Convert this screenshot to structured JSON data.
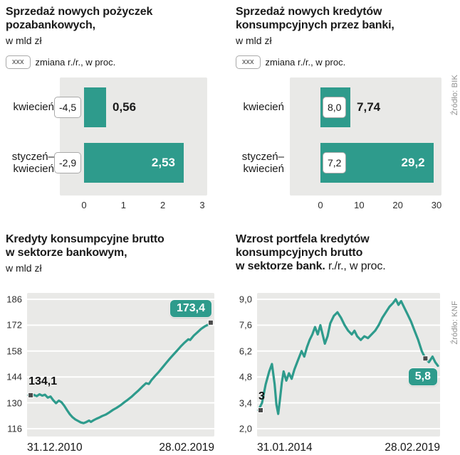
{
  "colors": {
    "teal": "#2E9B8C",
    "panel_bg": "#E9E9E7",
    "badge_border": "#A9A9A9",
    "marker": "#4A4A4A",
    "source_text": "#8F8F8F"
  },
  "sources": [
    {
      "label": "Źródło: BIK"
    },
    {
      "label": "Źródło: KNF"
    }
  ],
  "chart_data": [
    {
      "type": "bar",
      "title": "Sprzedaż nowych pożyczek\npozabankowych,",
      "subtitle": "w mld zł",
      "legend_badge": "xxx",
      "legend_label": "zmiana r./r., w proc.",
      "categories": [
        "kwiecień",
        "styczeń–\nkwiecień"
      ],
      "values": [
        0.56,
        2.53
      ],
      "value_labels": [
        "0,56",
        "2,53"
      ],
      "change_yoy_percent_labels": [
        "-4,5",
        "-2,9"
      ],
      "xlim": [
        0,
        3
      ],
      "xticks": [
        0,
        1,
        2,
        3
      ]
    },
    {
      "type": "bar",
      "title": "Sprzedaż nowych kredytów\nkonsumpcyjnych przez banki,",
      "subtitle": "w mld zł",
      "legend_badge": "xxx",
      "legend_label": "zmiana r./r., w proc.",
      "categories": [
        "kwiecień",
        "styczeń–\nkwiecień"
      ],
      "values": [
        7.74,
        29.2
      ],
      "value_labels": [
        "7,74",
        "29,2"
      ],
      "change_yoy_percent_labels": [
        "8,0",
        "7,2"
      ],
      "xlim": [
        0,
        30
      ],
      "xticks": [
        0,
        10,
        20,
        30
      ]
    },
    {
      "type": "line",
      "title": "Kredyty konsumpcyjne brutto\nw sektorze bankowym,",
      "subtitle": "w mld zł",
      "x_axis_labels": [
        "31.12.2010",
        "28.02.2019"
      ],
      "ylim": [
        116,
        186
      ],
      "yticks": [
        186,
        172,
        158,
        144,
        130,
        116
      ],
      "ytick_labels": [
        "186",
        "172",
        "158",
        "144",
        "130",
        "116"
      ],
      "start_marker": {
        "x": 0.012,
        "y": 134.1,
        "label": "134,1"
      },
      "end_marker": {
        "x": 0.992,
        "y": 173.4,
        "label": "173,4"
      },
      "points": [
        [
          0.0,
          134.1
        ],
        [
          0.015,
          133.2
        ],
        [
          0.03,
          134.3
        ],
        [
          0.045,
          133.6
        ],
        [
          0.06,
          134.6
        ],
        [
          0.075,
          133.9
        ],
        [
          0.09,
          134.4
        ],
        [
          0.105,
          132.8
        ],
        [
          0.12,
          133.4
        ],
        [
          0.135,
          131.4
        ],
        [
          0.15,
          129.8
        ],
        [
          0.165,
          131.2
        ],
        [
          0.18,
          130.3
        ],
        [
          0.195,
          128.4
        ],
        [
          0.21,
          126.0
        ],
        [
          0.225,
          123.8
        ],
        [
          0.24,
          122.2
        ],
        [
          0.255,
          121.0
        ],
        [
          0.27,
          120.2
        ],
        [
          0.285,
          119.4
        ],
        [
          0.3,
          119.0
        ],
        [
          0.315,
          119.6
        ],
        [
          0.33,
          120.4
        ],
        [
          0.34,
          119.7
        ],
        [
          0.355,
          120.6
        ],
        [
          0.37,
          121.4
        ],
        [
          0.385,
          122.0
        ],
        [
          0.4,
          122.8
        ],
        [
          0.42,
          123.6
        ],
        [
          0.44,
          124.8
        ],
        [
          0.46,
          126.2
        ],
        [
          0.48,
          127.3
        ],
        [
          0.5,
          128.6
        ],
        [
          0.52,
          130.2
        ],
        [
          0.54,
          131.6
        ],
        [
          0.56,
          133.2
        ],
        [
          0.58,
          135.0
        ],
        [
          0.6,
          136.8
        ],
        [
          0.62,
          138.8
        ],
        [
          0.64,
          140.6
        ],
        [
          0.655,
          140.2
        ],
        [
          0.67,
          142.4
        ],
        [
          0.69,
          144.6
        ],
        [
          0.71,
          146.8
        ],
        [
          0.73,
          149.2
        ],
        [
          0.75,
          151.6
        ],
        [
          0.77,
          154.0
        ],
        [
          0.79,
          156.2
        ],
        [
          0.81,
          158.4
        ],
        [
          0.83,
          160.6
        ],
        [
          0.85,
          162.6
        ],
        [
          0.87,
          164.4
        ],
        [
          0.88,
          164.0
        ],
        [
          0.9,
          166.4
        ],
        [
          0.92,
          168.2
        ],
        [
          0.94,
          170.0
        ],
        [
          0.96,
          171.4
        ],
        [
          0.98,
          172.4
        ],
        [
          1.0,
          173.4
        ]
      ]
    },
    {
      "type": "line",
      "title": "Wzrost portfela kredytów\nkonsumpcyjnych brutto\nw sektorze bank.",
      "title_tail": " r./r., w proc.",
      "subtitle": "",
      "x_axis_labels": [
        "31.01.2014",
        "28.02.2019"
      ],
      "ylim": [
        2.0,
        9.0
      ],
      "yticks": [
        9.0,
        7.6,
        6.2,
        4.8,
        3.4,
        2.0
      ],
      "ytick_labels": [
        "9,0",
        "7,6",
        "6,2",
        "4,8",
        "3,4",
        "2,0"
      ],
      "start_marker": {
        "x": 0.012,
        "y": 3.0,
        "label": "3"
      },
      "end_marker": {
        "x": 0.93,
        "y": 5.8,
        "label": "5,8"
      },
      "points": [
        [
          0.0,
          3.0
        ],
        [
          0.02,
          3.4
        ],
        [
          0.04,
          4.4
        ],
        [
          0.06,
          5.1
        ],
        [
          0.075,
          5.5
        ],
        [
          0.09,
          4.4
        ],
        [
          0.1,
          3.3
        ],
        [
          0.11,
          2.8
        ],
        [
          0.12,
          3.6
        ],
        [
          0.13,
          4.5
        ],
        [
          0.14,
          5.1
        ],
        [
          0.155,
          4.6
        ],
        [
          0.17,
          5.0
        ],
        [
          0.185,
          4.7
        ],
        [
          0.2,
          5.2
        ],
        [
          0.22,
          5.7
        ],
        [
          0.24,
          6.2
        ],
        [
          0.255,
          5.9
        ],
        [
          0.27,
          6.4
        ],
        [
          0.285,
          6.8
        ],
        [
          0.3,
          7.1
        ],
        [
          0.315,
          7.5
        ],
        [
          0.33,
          7.1
        ],
        [
          0.345,
          7.6
        ],
        [
          0.36,
          7.0
        ],
        [
          0.37,
          6.6
        ],
        [
          0.385,
          7.0
        ],
        [
          0.4,
          7.7
        ],
        [
          0.42,
          8.1
        ],
        [
          0.44,
          8.3
        ],
        [
          0.46,
          8.0
        ],
        [
          0.48,
          7.6
        ],
        [
          0.5,
          7.3
        ],
        [
          0.52,
          7.1
        ],
        [
          0.535,
          7.3
        ],
        [
          0.55,
          7.0
        ],
        [
          0.57,
          6.8
        ],
        [
          0.59,
          7.0
        ],
        [
          0.61,
          6.9
        ],
        [
          0.63,
          7.1
        ],
        [
          0.65,
          7.3
        ],
        [
          0.67,
          7.6
        ],
        [
          0.69,
          8.0
        ],
        [
          0.71,
          8.3
        ],
        [
          0.73,
          8.6
        ],
        [
          0.75,
          8.8
        ],
        [
          0.765,
          9.0
        ],
        [
          0.78,
          8.7
        ],
        [
          0.795,
          8.9
        ],
        [
          0.81,
          8.6
        ],
        [
          0.83,
          8.2
        ],
        [
          0.85,
          7.8
        ],
        [
          0.87,
          7.3
        ],
        [
          0.89,
          6.8
        ],
        [
          0.91,
          6.2
        ],
        [
          0.93,
          5.8
        ],
        [
          0.95,
          5.6
        ],
        [
          0.97,
          5.9
        ],
        [
          0.985,
          5.6
        ],
        [
          1.0,
          5.4
        ]
      ]
    }
  ]
}
